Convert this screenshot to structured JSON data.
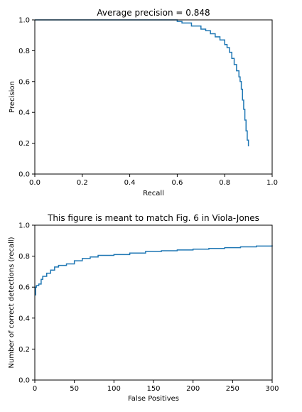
{
  "chart_data": [
    {
      "type": "line",
      "title": "Average precision = 0.848",
      "xlabel": "Recall",
      "ylabel": "Precision",
      "xlim": [
        0,
        1
      ],
      "ylim": [
        0,
        1
      ],
      "xticks": [
        0,
        0.2,
        0.4,
        0.6,
        0.8,
        1
      ],
      "xtick_labels": [
        "0.0",
        "0.2",
        "0.4",
        "0.6",
        "0.8",
        "1.0"
      ],
      "yticks": [
        0,
        0.2,
        0.4,
        0.6,
        0.8,
        1
      ],
      "ytick_labels": [
        "0.0",
        "0.2",
        "0.4",
        "0.6",
        "0.8",
        "1.0"
      ],
      "grid": false,
      "series": [
        {
          "color": "#1f77b4",
          "step": true,
          "x": [
            0.0,
            0.2,
            0.4,
            0.58,
            0.6,
            0.62,
            0.66,
            0.7,
            0.72,
            0.74,
            0.76,
            0.78,
            0.8,
            0.81,
            0.82,
            0.83,
            0.84,
            0.85,
            0.86,
            0.865,
            0.87,
            0.875,
            0.88,
            0.885,
            0.89,
            0.895,
            0.9
          ],
          "y": [
            1.0,
            1.0,
            1.0,
            1.0,
            0.99,
            0.98,
            0.96,
            0.94,
            0.93,
            0.91,
            0.89,
            0.87,
            0.84,
            0.82,
            0.79,
            0.75,
            0.71,
            0.67,
            0.63,
            0.6,
            0.55,
            0.48,
            0.42,
            0.35,
            0.28,
            0.22,
            0.18
          ]
        }
      ]
    },
    {
      "type": "line",
      "title": "This figure is meant to match Fig. 6 in Viola-Jones",
      "xlabel": "False Positives",
      "ylabel": "Number of correct detections (recall)",
      "xlim": [
        0,
        300
      ],
      "ylim": [
        0,
        1
      ],
      "xticks": [
        0,
        50,
        100,
        150,
        200,
        250,
        300
      ],
      "xtick_labels": [
        "0",
        "50",
        "100",
        "150",
        "200",
        "250",
        "300"
      ],
      "yticks": [
        0,
        0.2,
        0.4,
        0.6,
        0.8,
        1
      ],
      "ytick_labels": [
        "0.0",
        "0.2",
        "0.4",
        "0.6",
        "0.8",
        "1.0"
      ],
      "grid": false,
      "series": [
        {
          "color": "#1f77b4",
          "step": true,
          "x": [
            0,
            1,
            2,
            5,
            8,
            10,
            15,
            20,
            25,
            30,
            40,
            50,
            60,
            70,
            80,
            100,
            120,
            140,
            160,
            180,
            200,
            220,
            240,
            260,
            280,
            300
          ],
          "y": [
            0.55,
            0.6,
            0.61,
            0.62,
            0.65,
            0.67,
            0.69,
            0.71,
            0.73,
            0.74,
            0.75,
            0.77,
            0.785,
            0.795,
            0.805,
            0.81,
            0.82,
            0.83,
            0.835,
            0.84,
            0.845,
            0.85,
            0.855,
            0.86,
            0.865,
            0.87
          ]
        }
      ]
    }
  ]
}
